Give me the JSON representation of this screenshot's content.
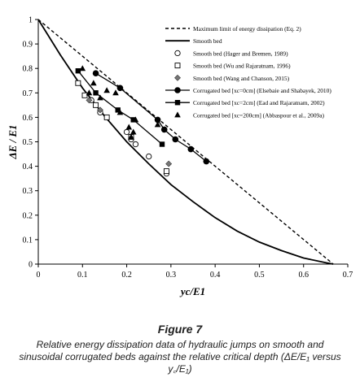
{
  "figure": {
    "title": "Figure 7",
    "caption": "Relative energy dissipation data of hydraulic jumps on smooth and sinusoidal corrugated beds against the relative critical depth (ΔE/E₁ versus y꜀/E₁)"
  },
  "chart_data": {
    "type": "scatter",
    "xlabel": "yc/E1",
    "ylabel": "ΔE / E1",
    "xlim": [
      0,
      0.7
    ],
    "ylim": [
      0,
      1
    ],
    "xticks": [
      "0",
      "0.1",
      "0.2",
      "0.3",
      "0.4",
      "0.5",
      "0.6",
      "0.7"
    ],
    "yticks": [
      "0",
      "0.1",
      "0.2",
      "0.3",
      "0.4",
      "0.5",
      "0.6",
      "0.7",
      "0.8",
      "0.9",
      "1"
    ],
    "grid": false,
    "legend_position": "top-right",
    "series": [
      {
        "name": "Maximum limit of energy dissipation (Eq. 2)",
        "kind": "line",
        "style": "dashed",
        "x": [
          0,
          0.667
        ],
        "y": [
          1,
          0
        ]
      },
      {
        "name": "Smooth bed",
        "kind": "line",
        "style": "solid",
        "x": [
          0,
          0.05,
          0.1,
          0.15,
          0.2,
          0.25,
          0.3,
          0.35,
          0.4,
          0.45,
          0.5,
          0.55,
          0.6,
          0.65,
          0.667
        ],
        "y": [
          1,
          0.855,
          0.72,
          0.605,
          0.5,
          0.41,
          0.325,
          0.255,
          0.19,
          0.135,
          0.09,
          0.055,
          0.025,
          0.006,
          0
        ]
      },
      {
        "name": "Smooth bed (Hager and Bremen, 1989)",
        "kind": "points",
        "marker": "circle-open",
        "x": [
          0.12,
          0.14,
          0.2,
          0.21,
          0.22,
          0.25,
          0.29
        ],
        "y": [
          0.67,
          0.62,
          0.54,
          0.51,
          0.49,
          0.44,
          0.37
        ]
      },
      {
        "name": "Smooth bed (Wu and Rajaratnam, 1996)",
        "kind": "points",
        "marker": "square-open",
        "x": [
          0.09,
          0.105,
          0.13,
          0.155,
          0.21,
          0.29
        ],
        "y": [
          0.74,
          0.69,
          0.65,
          0.6,
          0.52,
          0.38
        ]
      },
      {
        "name": "Smooth bed (Wang and Chanson, 2015)",
        "kind": "points",
        "marker": "diamond",
        "x": [
          0.115,
          0.14,
          0.295
        ],
        "y": [
          0.67,
          0.63,
          0.41
        ]
      },
      {
        "name": "Corrugated bed [xc=0cm] (Elsebaie and Shabayek, 2010)",
        "kind": "line-markers",
        "marker": "circle-filled",
        "x": [
          0.13,
          0.185,
          0.27,
          0.285,
          0.31,
          0.345,
          0.38
        ],
        "y": [
          0.78,
          0.72,
          0.59,
          0.55,
          0.51,
          0.47,
          0.42
        ]
      },
      {
        "name": "Corrugated bed [xc=2cm] (Ead and Rajaratnam, 2002)",
        "kind": "line-markers",
        "marker": "square-filled",
        "x": [
          0.09,
          0.13,
          0.18,
          0.215,
          0.28
        ],
        "y": [
          0.79,
          0.7,
          0.63,
          0.59,
          0.49
        ]
      },
      {
        "name": "Corrugated bed [xc=200cm] (Abbaspour et al., 2009a)",
        "kind": "points",
        "marker": "triangle",
        "x": [
          0.1,
          0.115,
          0.125,
          0.14,
          0.155,
          0.175,
          0.185,
          0.205,
          0.21,
          0.215,
          0.22,
          0.27
        ],
        "y": [
          0.8,
          0.7,
          0.74,
          0.68,
          0.71,
          0.7,
          0.62,
          0.56,
          0.52,
          0.54,
          0.59,
          0.57
        ]
      }
    ]
  }
}
